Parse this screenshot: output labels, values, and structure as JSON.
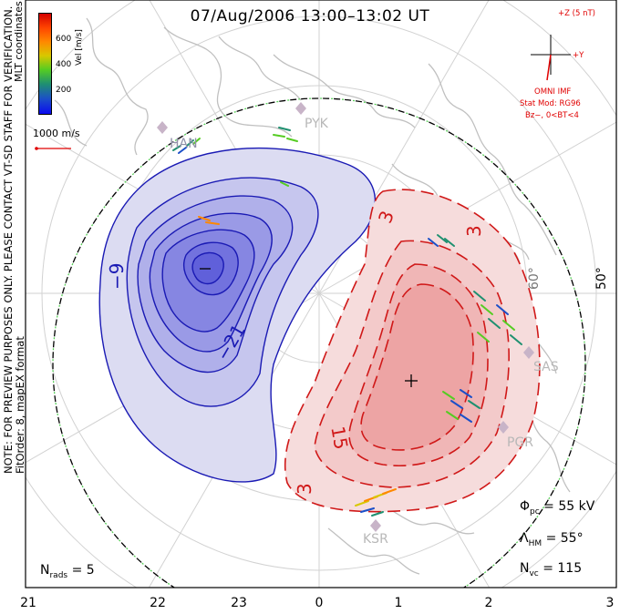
{
  "title": "07/Aug/2006 13:00–13:02 UT",
  "x_ticks": [
    "21",
    "22",
    "23",
    "0",
    "1",
    "2",
    "3"
  ],
  "side_note": {
    "line1": "NOTE: FOR PREVIEW PURPOSES ONLY. PLEASE CONTACT VT-SD STAFF FOR VERIFICATION.",
    "line2": "FitOrder: 8, mapEX format"
  },
  "mlt_label": "MLT coordinates",
  "colorbar": {
    "label": "Vel [m/s]",
    "ticks": [
      "600",
      "400",
      "200"
    ]
  },
  "velocity_scale": "1000 m/s",
  "imf": {
    "z_label": "+Z (5 nT)",
    "y_label": "+Y",
    "source": "OMNI IMF",
    "model": "Stat Mod: RG96",
    "condition": "Bz−, 0<BT<4"
  },
  "latitude_label": "50°",
  "latitude_label_inner": "60°",
  "contour_labels": {
    "neg": [
      "−9",
      "−21"
    ],
    "pos": [
      "3",
      "3",
      "15",
      "3"
    ]
  },
  "extrema": {
    "min_marker": "−",
    "max_marker": "+"
  },
  "radars": [
    "PYK",
    "SAS",
    "PGR",
    "KSR",
    "HAN"
  ],
  "stats": {
    "phi_pc": {
      "symbol": "Φ",
      "sub": "pc",
      "value": "= 55 kV"
    },
    "lambda_hm": {
      "symbol": "Λ",
      "sub": "HM",
      "value": "= 55°"
    },
    "n_vc": {
      "symbol": "N",
      "sub": "vc",
      "value": "= 115"
    },
    "n_rads": {
      "symbol": "N",
      "sub": "rads",
      "value": "= 5"
    }
  },
  "colors": {
    "neg_contour": "#1a1ab4",
    "pos_contour": "#d01818",
    "frame": "#000000",
    "grid": "#cccccc",
    "land": "#bfbfbf",
    "imf": "#e00000"
  }
}
